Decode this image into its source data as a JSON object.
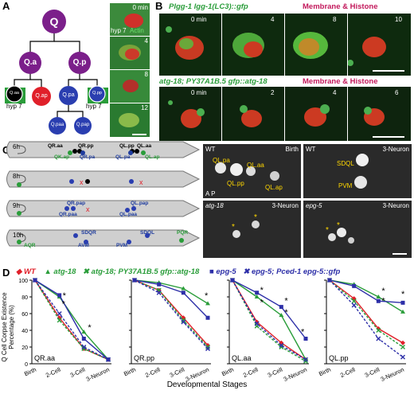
{
  "panel_labels": {
    "a": "A",
    "b": "B",
    "c": "C",
    "d": "D"
  },
  "lineage": {
    "q": "Q",
    "qa": "Q.a",
    "qp": "Q.p",
    "qaa": "Q.aa",
    "qap": "Q.ap",
    "qpa": "Q.pa",
    "qpp": "Q.pp",
    "qpaa": "Q.paa",
    "qpap": "Q.pap",
    "hyp7_left": "hyp 7",
    "hyp7_right": "hyp 7"
  },
  "panel_a_strip": {
    "times": [
      "0 min",
      "4",
      "8",
      "12"
    ],
    "labels": [
      "hyp 7",
      "Actin"
    ]
  },
  "panel_b": {
    "row1_title_green": "Plgg-1 lgg-1(LC3)::gfp",
    "row1_title_red": "Membrane & Histone",
    "row1_times": [
      "0 min",
      "4",
      "8",
      "10"
    ],
    "row2_title_green": "atg-18; PY37A1B.5 gfp::atg-18",
    "row2_title_red": "Membrane & Histone",
    "row2_times": [
      "0 min",
      "2",
      "4",
      "6"
    ]
  },
  "panel_c_worms": {
    "rows": [
      {
        "time": "6h",
        "labels": [
          {
            "t": "QR.aa",
            "c": "#000"
          },
          {
            "t": "QR.pp",
            "c": "#000"
          },
          {
            "t": "QK.ap",
            "c": "#2a9d3a"
          },
          {
            "t": "QR.pa",
            "c": "#1f3c9e"
          },
          {
            "t": "QL.pp",
            "c": "#000"
          },
          {
            "t": "QL.aa",
            "c": "#000"
          },
          {
            "t": "QL.pa",
            "c": "#1f3c9e"
          },
          {
            "t": "QL.ap",
            "c": "#2a9d3a"
          }
        ]
      },
      {
        "time": "8h",
        "labels": []
      },
      {
        "time": "9h",
        "labels": [
          {
            "t": "QR.pap",
            "c": "#1f3c9e"
          },
          {
            "t": "QR.paa",
            "c": "#1f3c9e"
          },
          {
            "t": "QL.pap",
            "c": "#1f3c9e"
          },
          {
            "t": "QL.paa",
            "c": "#1f3c9e"
          }
        ]
      },
      {
        "time": "10h",
        "labels": [
          {
            "t": "SDQR",
            "c": "#1f3c9e"
          },
          {
            "t": "AVM",
            "c": "#1f3c9e"
          },
          {
            "t": "PVM",
            "c": "#1f3c9e"
          },
          {
            "t": "SDQL",
            "c": "#1f3c9e"
          },
          {
            "t": "AQR",
            "c": "#2a9d3a"
          },
          {
            "t": "PQR",
            "c": "#2a9d3a"
          }
        ]
      }
    ]
  },
  "panel_c_micro": {
    "p1": {
      "tl": "WT",
      "tr": "Birth",
      "cells": [
        "QL.pa",
        "QL.aa",
        "QL.pp",
        "QL.ap"
      ],
      "axis": "A P"
    },
    "p2": {
      "tl": "WT",
      "tr": "3-Neuron",
      "cells": [
        "SDQL",
        "PVM"
      ]
    },
    "p3": {
      "tl": "atg-18",
      "tr": "3-Neuron"
    },
    "p4": {
      "tl": "epg-5",
      "tr": "3-Neuron"
    }
  },
  "legend": {
    "wt": "WT",
    "atg18": "atg-18",
    "atg18_rescue": "atg-18; PY37A1B.5 gfp::atg-18",
    "epg5": "epg-5",
    "epg5_rescue": "epg-5; Pced-1 epg-5::gfp"
  },
  "colors": {
    "wt": "#e0202a",
    "atg18": "#2a9d3a",
    "epg5": "#2d2fa8",
    "purple": "#7b1f8a",
    "lineage_green": "#2a9d3a",
    "lineage_red": "#e0202a",
    "lineage_blue": "#2a3eb0"
  },
  "chart_data": [
    {
      "type": "line",
      "title": "QR.aa",
      "ylabel": "Q Cell Corpse Existence Percentage (%)",
      "xlabel": "Developmental Stages",
      "categories": [
        "Birth",
        "2-Cell",
        "3-Cell",
        "3-Neuron"
      ],
      "ylim": [
        0,
        100
      ],
      "yticks": [
        0,
        20,
        40,
        60,
        80,
        100
      ],
      "series": [
        {
          "name": "WT",
          "values": [
            100,
            55,
            18,
            5
          ]
        },
        {
          "name": "atg-18",
          "values": [
            100,
            80,
            38,
            5
          ]
        },
        {
          "name": "atg-18; PY37A1B.5 gfp::atg-18",
          "values": [
            100,
            52,
            18,
            5
          ]
        },
        {
          "name": "epg-5",
          "values": [
            100,
            82,
            30,
            5
          ]
        },
        {
          "name": "epg-5; Pced-1 epg-5::gfp",
          "values": [
            100,
            60,
            20,
            5
          ]
        }
      ],
      "annotations": [
        "*",
        "*",
        "*"
      ]
    },
    {
      "type": "line",
      "title": "QR.pp",
      "categories": [
        "Birth",
        "2-Cell",
        "3-Cell",
        "3-Neuron"
      ],
      "ylim": [
        0,
        100
      ],
      "series": [
        {
          "name": "WT",
          "values": [
            100,
            88,
            55,
            22
          ]
        },
        {
          "name": "atg-18",
          "values": [
            100,
            97,
            90,
            72
          ]
        },
        {
          "name": "atg-18; PY37A1B.5 gfp::atg-18",
          "values": [
            100,
            88,
            52,
            20
          ]
        },
        {
          "name": "epg-5",
          "values": [
            100,
            95,
            85,
            55
          ]
        },
        {
          "name": "epg-5; Pced-1 epg-5::gfp",
          "values": [
            100,
            85,
            50,
            18
          ]
        }
      ],
      "annotations": [
        "*"
      ]
    },
    {
      "type": "line",
      "title": "QL.aa",
      "categories": [
        "Birth",
        "2-Cell",
        "3-Cell",
        "3-Neuron"
      ],
      "ylim": [
        0,
        100
      ],
      "series": [
        {
          "name": "WT",
          "values": [
            100,
            50,
            25,
            5
          ]
        },
        {
          "name": "atg-18",
          "values": [
            100,
            80,
            58,
            5
          ]
        },
        {
          "name": "atg-18; PY37A1B.5 gfp::atg-18",
          "values": [
            100,
            45,
            20,
            3
          ]
        },
        {
          "name": "epg-5",
          "values": [
            100,
            85,
            68,
            30
          ]
        },
        {
          "name": "epg-5; Pced-1 epg-5::gfp",
          "values": [
            100,
            48,
            22,
            5
          ]
        }
      ],
      "annotations": [
        "*",
        "*",
        "*",
        "*",
        "*"
      ]
    },
    {
      "type": "line",
      "title": "QL.pp",
      "categories": [
        "Birth",
        "2-Cell",
        "3-Cell",
        "3-Neuron"
      ],
      "ylim": [
        0,
        100
      ],
      "series": [
        {
          "name": "WT",
          "values": [
            100,
            78,
            42,
            25
          ]
        },
        {
          "name": "atg-18",
          "values": [
            100,
            95,
            80,
            62
          ]
        },
        {
          "name": "atg-18; PY37A1B.5 gfp::atg-18",
          "values": [
            100,
            75,
            40,
            20
          ]
        },
        {
          "name": "epg-5",
          "values": [
            100,
            93,
            75,
            73
          ]
        },
        {
          "name": "epg-5; Pced-1 epg-5::gfp",
          "values": [
            100,
            70,
            30,
            8
          ]
        }
      ],
      "annotations": [
        "*",
        "*",
        "*"
      ]
    }
  ]
}
